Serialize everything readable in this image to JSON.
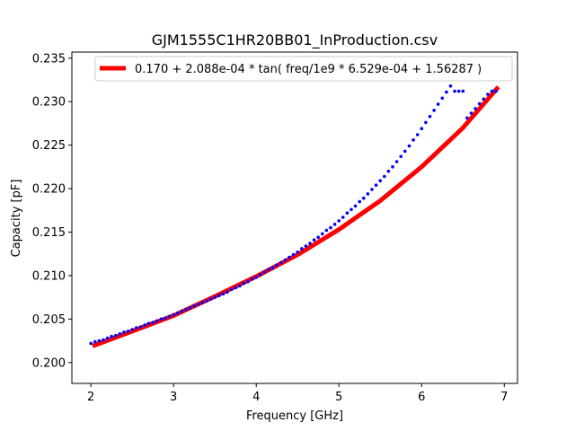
{
  "chart_data": {
    "type": "line",
    "title": "GJM1555C1HR20BB01_InProduction.csv",
    "xlabel": "Frequency [GHz]",
    "ylabel": "Capacity [pF]",
    "xlim": [
      1.77,
      7.16
    ],
    "ylim": [
      0.1976,
      0.2357
    ],
    "xticks": [
      2,
      3,
      4,
      5,
      6,
      7
    ],
    "yticks": [
      0.2,
      0.205,
      0.21,
      0.215,
      0.22,
      0.225,
      0.23,
      0.235
    ],
    "xtick_labels": [
      "2",
      "3",
      "4",
      "5",
      "6",
      "7"
    ],
    "ytick_labels": [
      "0.200",
      "0.205",
      "0.210",
      "0.215",
      "0.220",
      "0.225",
      "0.230",
      "0.235"
    ],
    "legend_placement": "top-right",
    "grid": false,
    "measured": {
      "color": "#0000ff",
      "marker": "dot",
      "x": [
        2.0,
        2.05,
        2.1,
        2.15,
        2.2,
        2.25,
        2.3,
        2.35,
        2.4,
        2.45,
        2.5,
        2.55,
        2.6,
        2.65,
        2.7,
        2.75,
        2.8,
        2.85,
        2.9,
        2.95,
        3.0,
        3.05,
        3.1,
        3.15,
        3.2,
        3.25,
        3.3,
        3.35,
        3.4,
        3.45,
        3.5,
        3.55,
        3.6,
        3.65,
        3.7,
        3.75,
        3.8,
        3.85,
        3.9,
        3.95,
        4.0,
        4.05,
        4.1,
        4.15,
        4.2,
        4.25,
        4.3,
        4.35,
        4.4,
        4.45,
        4.5,
        4.55,
        4.6,
        4.65,
        4.7,
        4.75,
        4.8,
        4.85,
        4.9,
        4.95,
        5.0,
        5.05,
        5.1,
        5.15,
        5.2,
        5.25,
        5.3,
        5.35,
        5.4,
        5.45,
        5.5,
        5.55,
        5.6,
        5.65,
        5.7,
        5.75,
        5.8,
        5.85,
        5.9,
        5.95,
        6.0,
        6.05,
        6.1,
        6.15,
        6.2,
        6.25,
        6.3,
        6.35,
        6.4,
        6.45,
        6.5,
        6.55,
        6.6,
        6.65,
        6.7,
        6.75,
        6.8,
        6.85,
        6.9
      ],
      "y": [
        0.2022,
        0.2024,
        0.2025,
        0.2026,
        0.2028,
        0.203,
        0.2031,
        0.2033,
        0.2035,
        0.2036,
        0.2038,
        0.204,
        0.2041,
        0.2043,
        0.2045,
        0.2046,
        0.2048,
        0.205,
        0.2051,
        0.2053,
        0.2055,
        0.2057,
        0.2059,
        0.2061,
        0.2063,
        0.2065,
        0.2067,
        0.2069,
        0.2071,
        0.2073,
        0.2075,
        0.2077,
        0.2079,
        0.2081,
        0.2084,
        0.2086,
        0.2088,
        0.2091,
        0.2093,
        0.2096,
        0.2098,
        0.2101,
        0.2104,
        0.2107,
        0.2109,
        0.2112,
        0.2115,
        0.2118,
        0.2121,
        0.2124,
        0.2127,
        0.2131,
        0.2134,
        0.2137,
        0.2141,
        0.2144,
        0.2148,
        0.2152,
        0.2155,
        0.2159,
        0.2163,
        0.2167,
        0.2172,
        0.2176,
        0.218,
        0.2185,
        0.2189,
        0.2194,
        0.2199,
        0.2204,
        0.2209,
        0.2214,
        0.222,
        0.2225,
        0.2231,
        0.2237,
        0.2243,
        0.2249,
        0.2256,
        0.2262,
        0.2269,
        0.2276,
        0.2283,
        0.229,
        0.2297,
        0.2304,
        0.2311,
        0.2318,
        0.2312,
        0.2312,
        0.2312,
        0.2312,
        0.2312,
        0.2312,
        0.2312,
        0.2312,
        0.2312,
        0.2312,
        0.2312
      ]
    },
    "fit": {
      "name": "0.170 + 2.088e-04 * tan( freq/1e9 * 6.529e-04 + 1.56287 )",
      "color": "#ff0000",
      "x": [
        2.02,
        2.5,
        3.0,
        3.5,
        4.0,
        4.5,
        5.0,
        5.5,
        6.0,
        6.5,
        6.93
      ],
      "y": [
        0.2019,
        0.2036,
        0.2054,
        0.2076,
        0.2099,
        0.2124,
        0.2153,
        0.2186,
        0.2225,
        0.227,
        0.2317
      ]
    }
  }
}
